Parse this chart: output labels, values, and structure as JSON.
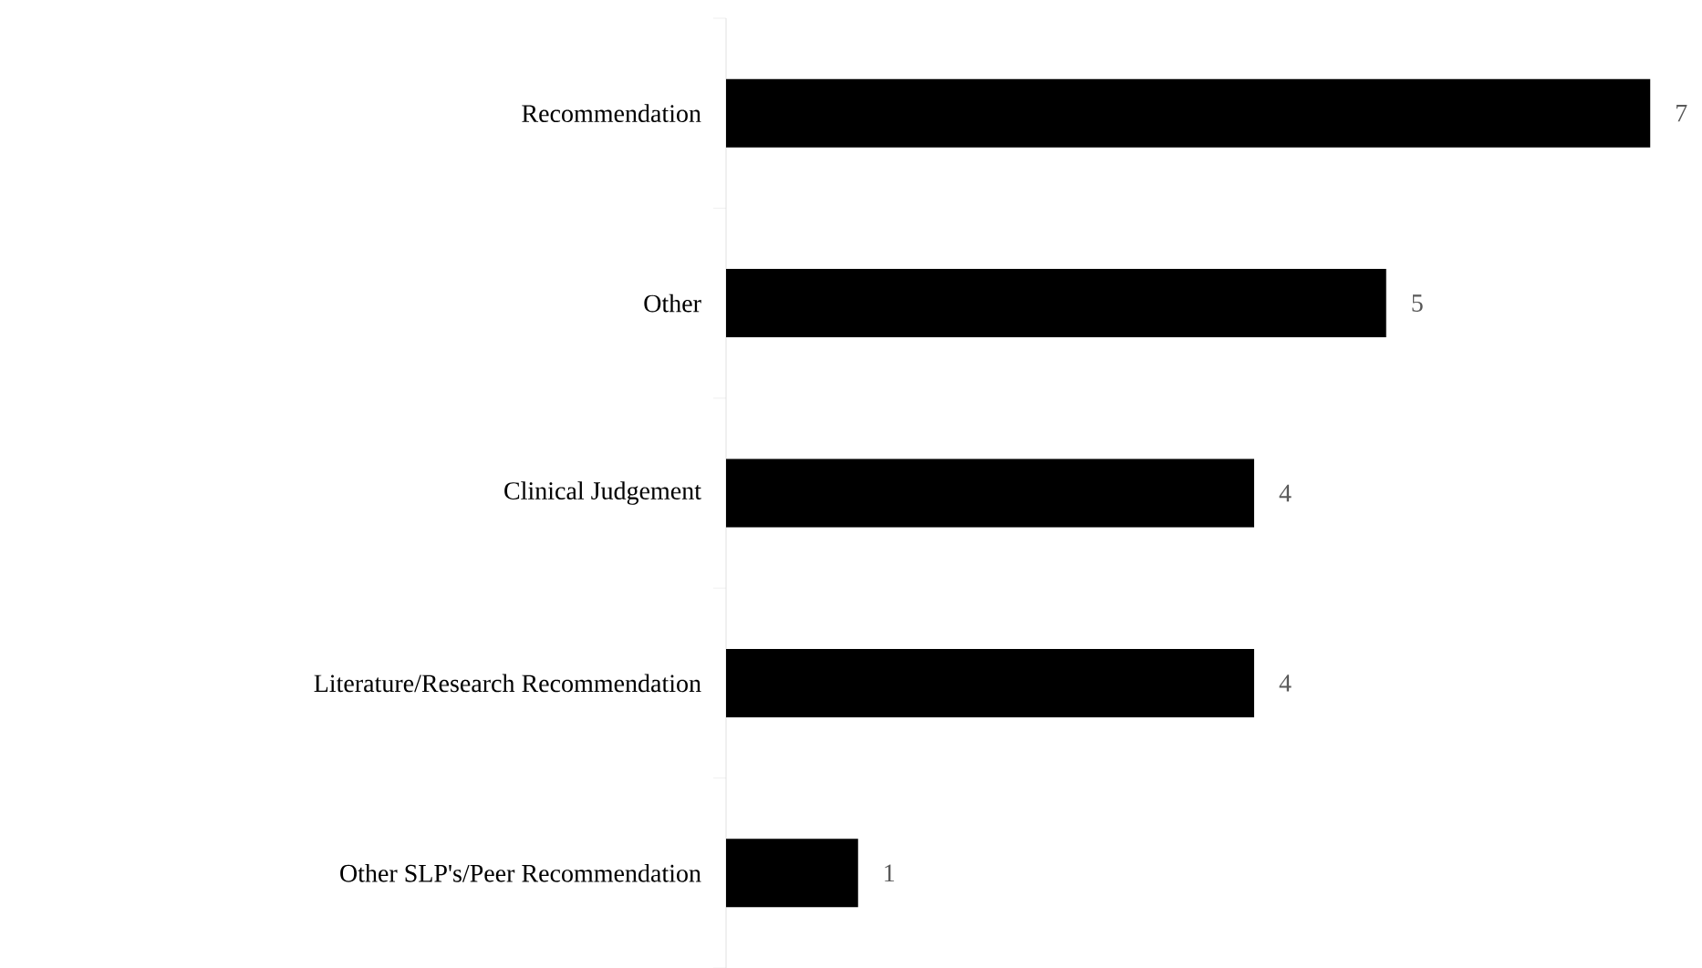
{
  "chart_data": {
    "type": "bar",
    "orientation": "horizontal",
    "categories": [
      "Recommendation",
      "Other",
      "Clinical Judgement",
      "Literature/Research Recommendation",
      "Other SLP's/Peer Recommendation"
    ],
    "values": [
      7,
      5,
      4,
      4,
      1
    ],
    "color": "#000000",
    "data_labels": true,
    "tick_labels": "y"
  }
}
